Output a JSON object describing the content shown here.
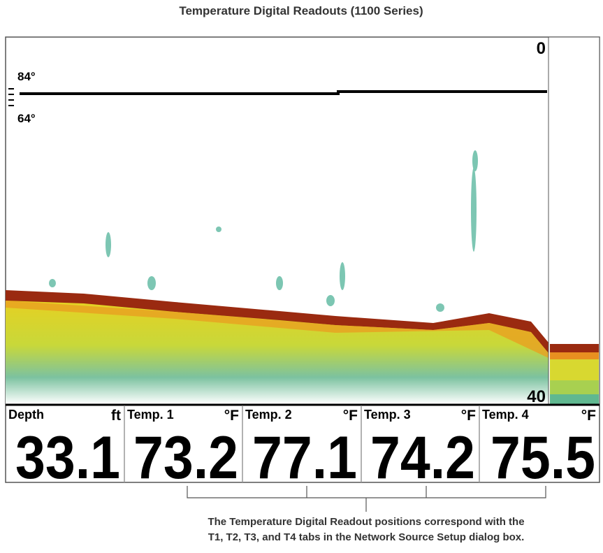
{
  "header": {
    "title": "Temperature Digital Readouts (1100 Series)"
  },
  "sonar": {
    "depth_top": "0",
    "depth_bottom": "40",
    "temp_upper": "84°",
    "temp_lower": "64°"
  },
  "readouts": [
    {
      "label": "Depth",
      "unit": "ft",
      "value": "33.1"
    },
    {
      "label": "Temp. 1",
      "unit": "°F",
      "value": "73.2"
    },
    {
      "label": "Temp. 2",
      "unit": "°F",
      "value": "77.1"
    },
    {
      "label": "Temp. 3",
      "unit": "°F",
      "value": "74.2"
    },
    {
      "label": "Temp. 4",
      "unit": "°F",
      "value": "75.5"
    }
  ],
  "caption": [
    "The Temperature Digital Readout positions correspond with the",
    "T1, T2, T3, and T4 tabs in the Network Source Setup dialog box."
  ]
}
